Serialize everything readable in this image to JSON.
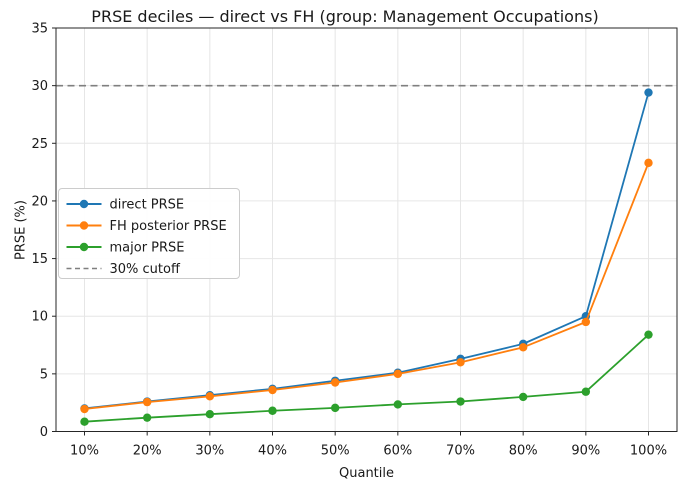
{
  "figure": {
    "kind": "matplotlib line chart"
  },
  "chart_data": {
    "type": "line",
    "title": "PRSE deciles — direct vs FH (group: Management Occupations)",
    "xlabel": "Quantile",
    "ylabel": "PRSE (%)",
    "categories": [
      "10%",
      "20%",
      "30%",
      "40%",
      "50%",
      "60%",
      "70%",
      "80%",
      "90%",
      "100%"
    ],
    "series": [
      {
        "name": "direct PRSE",
        "color": "#1f77b4",
        "marker": "circle",
        "values": [
          2.0,
          2.6,
          3.15,
          3.7,
          4.4,
          5.1,
          6.3,
          7.6,
          10.0,
          29.4
        ]
      },
      {
        "name": "FH posterior PRSE",
        "color": "#ff7f0e",
        "marker": "circle",
        "values": [
          1.95,
          2.55,
          3.05,
          3.6,
          4.25,
          5.0,
          6.0,
          7.3,
          9.5,
          23.3
        ]
      },
      {
        "name": "major PRSE",
        "color": "#2ca02c",
        "marker": "circle",
        "values": [
          0.85,
          1.2,
          1.5,
          1.8,
          2.05,
          2.35,
          2.6,
          3.0,
          3.45,
          8.4
        ]
      }
    ],
    "cutoff_line": {
      "label": "30% cutoff",
      "value": 30,
      "color": "#7f7f7f",
      "dashed": true
    },
    "ylim": [
      0,
      35
    ],
    "yticks": [
      0,
      5,
      10,
      15,
      20,
      25,
      30,
      35
    ],
    "grid": true,
    "grid_color": "#e6e6e6",
    "spine_color": "#262626",
    "legend": {
      "position": "center-left",
      "border_color": "#cccccc",
      "entries": [
        "direct PRSE",
        "FH posterior PRSE",
        "major PRSE",
        "30% cutoff"
      ]
    }
  }
}
